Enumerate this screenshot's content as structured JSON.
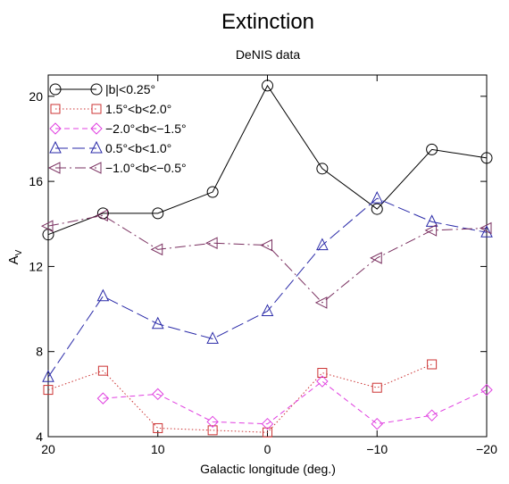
{
  "chart_data": {
    "type": "line",
    "title": "Extinction",
    "subtitle": "DeNIS data",
    "xlabel": "Galactic longitude (deg.)",
    "ylabel": "A",
    "ylabel_sub": "V",
    "xlim": [
      20,
      -20
    ],
    "ylim": [
      4,
      21
    ],
    "x_reversed": true,
    "xticks": [
      20,
      10,
      0,
      -10,
      -20
    ],
    "xticks_labels": [
      "20",
      "10",
      "0",
      "−10",
      "−20"
    ],
    "yticks": [
      4,
      8,
      12,
      16,
      20
    ],
    "yticks_labels": [
      "4",
      "8",
      "12",
      "16",
      "20"
    ],
    "grid": false,
    "legend_position": "top-left",
    "series": [
      {
        "legend_text": "|b|<0.25°",
        "color": "#000000",
        "marker": "circle",
        "dash": "",
        "x": [
          20,
          15,
          10,
          5,
          0,
          -5,
          -10,
          -15,
          -20
        ],
        "y": [
          13.5,
          14.5,
          14.5,
          15.5,
          20.5,
          16.6,
          14.7,
          17.5,
          17.1
        ]
      },
      {
        "legend_text": "1.5°<b<2.0°",
        "color": "#cc3333",
        "marker": "square",
        "dash": "1.5,2.5",
        "x": [
          20,
          15,
          10,
          5,
          0,
          -5,
          -10,
          -15
        ],
        "y": [
          6.2,
          7.1,
          4.4,
          4.3,
          4.2,
          7.0,
          6.3,
          7.4
        ]
      },
      {
        "legend_text": "−2.0°<b<−1.5°",
        "color": "#e040e0",
        "marker": "diamond",
        "dash": "6,4",
        "x": [
          15,
          10,
          5,
          0,
          -5,
          -10,
          -15,
          -20
        ],
        "y": [
          5.8,
          6.0,
          4.7,
          4.6,
          6.6,
          4.6,
          5.0,
          6.2
        ]
      },
      {
        "legend_text": "0.5°<b<1.0°",
        "color": "#2a2aa8",
        "marker": "triangle-up",
        "dash": "14,5",
        "x": [
          20,
          15,
          10,
          5,
          0,
          -5,
          -10,
          -15,
          -20
        ],
        "y": [
          6.8,
          10.6,
          9.3,
          8.6,
          9.9,
          13.0,
          15.2,
          14.1,
          13.6
        ]
      },
      {
        "legend_text": "−1.0°<b<−0.5°",
        "color": "#7a3060",
        "marker": "triangle-left",
        "dash": "12,4,2,4",
        "x": [
          20,
          15,
          10,
          5,
          0,
          -5,
          -10,
          -15,
          -20
        ],
        "y": [
          13.9,
          14.4,
          12.8,
          13.1,
          13.0,
          10.3,
          12.4,
          13.7,
          13.8
        ]
      }
    ]
  }
}
